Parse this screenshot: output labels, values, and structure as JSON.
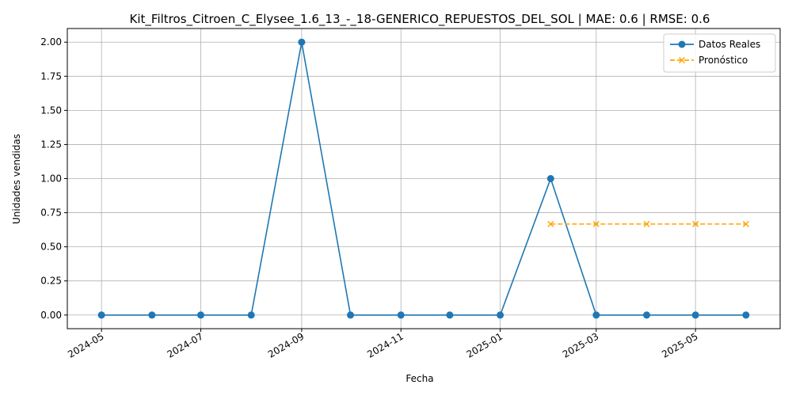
{
  "chart_data": {
    "type": "line",
    "title": "Kit_Filtros_Citroen_C_Elysee_1.6_13_-_18-GENERICO_REPUESTOS_DEL_SOL | MAE: 0.6 | RMSE: 0.6",
    "xlabel": "Fecha",
    "ylabel": "Unidades vendidas",
    "x_ticks": [
      "2024-05",
      "2024-07",
      "2024-09",
      "2024-11",
      "2025-01",
      "2025-03",
      "2025-05"
    ],
    "y_ticks": [
      "0.00",
      "0.25",
      "0.50",
      "0.75",
      "1.00",
      "1.25",
      "1.50",
      "1.75",
      "2.00"
    ],
    "ylim": [
      -0.1,
      2.1
    ],
    "xlim": [
      "2024-04-10",
      "2025-06-22"
    ],
    "grid": true,
    "legend_position": "top-right",
    "series": [
      {
        "name": "Datos Reales",
        "color": "#1f77b4",
        "marker": "circle",
        "line": "solid",
        "x": [
          "2024-05-01",
          "2024-06-01",
          "2024-07-01",
          "2024-08-01",
          "2024-09-01",
          "2024-10-01",
          "2024-11-01",
          "2024-12-01",
          "2025-01-01",
          "2025-02-01",
          "2025-03-01",
          "2025-04-01",
          "2025-05-01",
          "2025-06-01"
        ],
        "values": [
          0,
          0,
          0,
          0,
          2,
          0,
          0,
          0,
          0,
          1,
          0,
          0,
          0,
          0
        ]
      },
      {
        "name": "Pronóstico",
        "color": "#ffa500",
        "marker": "x",
        "line": "dashed",
        "x": [
          "2025-02-01",
          "2025-03-01",
          "2025-04-01",
          "2025-05-01",
          "2025-06-01"
        ],
        "values": [
          0.667,
          0.667,
          0.667,
          0.667,
          0.667
        ]
      }
    ]
  }
}
